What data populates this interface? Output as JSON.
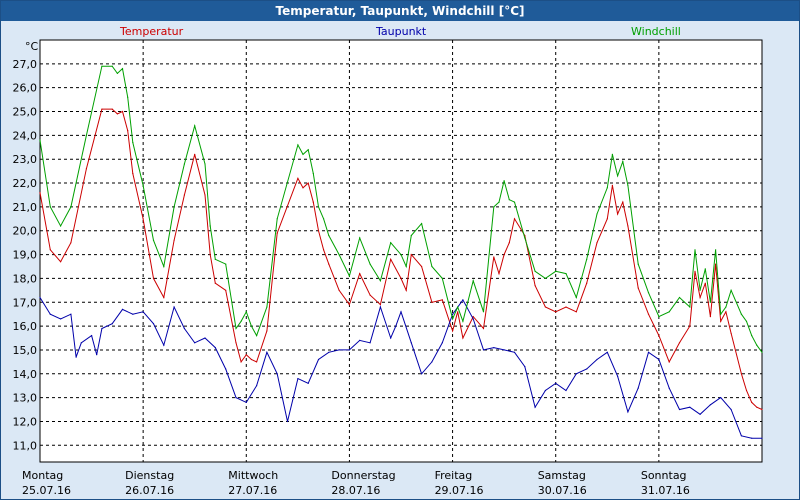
{
  "window": {
    "title": "Temperatur, Taupunkt, Windchill [°C]"
  },
  "colors": {
    "temperatur": "#cc0000",
    "taupunkt": "#0000aa",
    "windchill": "#00a000",
    "grid": "#000000",
    "plot_bg": "#ffffff"
  },
  "chart_data": {
    "type": "line",
    "title": "Temperatur, Taupunkt, Windchill [°C]",
    "unit": "°C",
    "ylabel": "°C",
    "ylim": [
      10.3,
      28.0
    ],
    "grid": true,
    "y_ticks": [
      "11,0",
      "12,0",
      "13,0",
      "14,0",
      "15,0",
      "16,0",
      "17,0",
      "18,0",
      "19,0",
      "20,0",
      "21,0",
      "22,0",
      "23,0",
      "24,0",
      "25,0",
      "26,0",
      "27,0"
    ],
    "x_ticks": [
      {
        "day": "Montag",
        "date": "25.07.16"
      },
      {
        "day": "Dienstag",
        "date": "26.07.16"
      },
      {
        "day": "Mittwoch",
        "date": "27.07.16"
      },
      {
        "day": "Donnerstag",
        "date": "28.07.16"
      },
      {
        "day": "Freitag",
        "date": "29.07.16"
      },
      {
        "day": "Samstag",
        "date": "30.07.16"
      },
      {
        "day": "Sonntag",
        "date": "31.07.16"
      }
    ],
    "x_range_days": [
      0,
      7.0
    ],
    "series": [
      {
        "name": "Temperatur",
        "color": "#cc0000",
        "x": [
          0,
          0.1,
          0.2,
          0.3,
          0.45,
          0.6,
          0.7,
          0.75,
          0.8,
          0.85,
          0.9,
          1.0,
          1.1,
          1.2,
          1.3,
          1.4,
          1.5,
          1.6,
          1.65,
          1.7,
          1.8,
          1.9,
          1.95,
          2.0,
          2.05,
          2.1,
          2.2,
          2.3,
          2.5,
          2.55,
          2.6,
          2.65,
          2.7,
          2.75,
          2.8,
          2.9,
          3.0,
          3.1,
          3.2,
          3.3,
          3.4,
          3.5,
          3.55,
          3.6,
          3.7,
          3.8,
          3.9,
          4.0,
          4.05,
          4.1,
          4.2,
          4.3,
          4.4,
          4.45,
          4.5,
          4.55,
          4.6,
          4.7,
          4.8,
          4.9,
          5.0,
          5.1,
          5.2,
          5.3,
          5.4,
          5.5,
          5.55,
          5.6,
          5.65,
          5.7,
          5.8,
          5.9,
          6.0,
          6.1,
          6.2,
          6.3,
          6.35,
          6.4,
          6.45,
          6.5,
          6.55,
          6.6,
          6.65,
          6.7,
          6.8,
          6.85,
          6.9,
          6.95,
          7.0
        ],
        "y": [
          21.6,
          19.2,
          18.7,
          19.5,
          22.6,
          25.1,
          25.1,
          24.9,
          25.0,
          24.2,
          22.4,
          20.5,
          18.0,
          17.2,
          19.6,
          21.5,
          23.2,
          21.5,
          19.0,
          17.8,
          17.5,
          15.3,
          14.5,
          14.8,
          14.6,
          14.5,
          15.8,
          19.9,
          22.2,
          21.8,
          22.0,
          21.2,
          20.0,
          19.2,
          18.6,
          17.5,
          16.9,
          18.2,
          17.3,
          16.9,
          18.8,
          18.0,
          17.5,
          19.0,
          18.5,
          17.0,
          17.1,
          15.8,
          16.6,
          15.5,
          16.4,
          15.9,
          18.9,
          18.2,
          19.0,
          19.5,
          20.5,
          19.8,
          17.7,
          16.8,
          16.6,
          16.8,
          16.6,
          17.8,
          19.5,
          20.5,
          21.9,
          20.7,
          21.2,
          20.2,
          17.6,
          16.5,
          15.6,
          14.5,
          15.3,
          16.0,
          18.3,
          17.2,
          17.8,
          16.4,
          18.6,
          16.2,
          16.6,
          15.7,
          14.0,
          13.3,
          12.8,
          12.6,
          12.5
        ]
      },
      {
        "name": "Taupunkt",
        "color": "#0000aa",
        "x": [
          0,
          0.1,
          0.2,
          0.3,
          0.35,
          0.4,
          0.5,
          0.55,
          0.6,
          0.7,
          0.8,
          0.9,
          1.0,
          1.1,
          1.2,
          1.3,
          1.4,
          1.5,
          1.6,
          1.7,
          1.8,
          1.9,
          2.0,
          2.1,
          2.2,
          2.3,
          2.4,
          2.5,
          2.6,
          2.7,
          2.8,
          2.9,
          3.0,
          3.1,
          3.2,
          3.3,
          3.4,
          3.45,
          3.5,
          3.6,
          3.7,
          3.8,
          3.9,
          4.0,
          4.1,
          4.2,
          4.3,
          4.4,
          4.5,
          4.6,
          4.7,
          4.8,
          4.9,
          5.0,
          5.1,
          5.2,
          5.3,
          5.4,
          5.5,
          5.6,
          5.7,
          5.8,
          5.9,
          6.0,
          6.1,
          6.2,
          6.3,
          6.4,
          6.5,
          6.6,
          6.7,
          6.8,
          6.9,
          7.0
        ],
        "y": [
          17.2,
          16.5,
          16.3,
          16.5,
          14.7,
          15.3,
          15.6,
          14.8,
          15.9,
          16.1,
          16.7,
          16.5,
          16.6,
          16.1,
          15.2,
          16.8,
          15.9,
          15.3,
          15.5,
          15.1,
          14.2,
          13.0,
          12.8,
          13.5,
          14.9,
          14.0,
          12.0,
          13.8,
          13.6,
          14.6,
          14.9,
          15.0,
          15.0,
          15.4,
          15.3,
          16.8,
          15.5,
          16.0,
          16.6,
          15.3,
          14.0,
          14.5,
          15.3,
          16.5,
          17.1,
          16.3,
          15.0,
          15.1,
          15.0,
          14.9,
          14.3,
          12.6,
          13.3,
          13.6,
          13.3,
          14.0,
          14.2,
          14.6,
          14.9,
          13.9,
          12.4,
          13.4,
          14.9,
          14.6,
          13.4,
          12.5,
          12.6,
          12.3,
          12.7,
          13.0,
          12.5,
          11.4,
          11.3,
          11.3
        ]
      },
      {
        "name": "Windchill",
        "color": "#00a000",
        "x": [
          0,
          0.1,
          0.2,
          0.3,
          0.45,
          0.6,
          0.7,
          0.75,
          0.8,
          0.85,
          0.9,
          1.0,
          1.1,
          1.2,
          1.3,
          1.4,
          1.5,
          1.6,
          1.65,
          1.7,
          1.8,
          1.9,
          1.95,
          2.0,
          2.05,
          2.1,
          2.2,
          2.3,
          2.5,
          2.55,
          2.6,
          2.65,
          2.7,
          2.75,
          2.8,
          2.9,
          3.0,
          3.1,
          3.2,
          3.3,
          3.4,
          3.5,
          3.55,
          3.6,
          3.7,
          3.8,
          3.9,
          4.0,
          4.05,
          4.1,
          4.2,
          4.3,
          4.4,
          4.45,
          4.5,
          4.55,
          4.6,
          4.7,
          4.8,
          4.9,
          5.0,
          5.1,
          5.2,
          5.3,
          5.4,
          5.5,
          5.55,
          5.6,
          5.65,
          5.7,
          5.8,
          5.9,
          6.0,
          6.1,
          6.2,
          6.3,
          6.35,
          6.4,
          6.45,
          6.5,
          6.55,
          6.6,
          6.65,
          6.7,
          6.8,
          6.85,
          6.9,
          6.95,
          7.0
        ],
        "y": [
          23.8,
          21.0,
          20.2,
          21.0,
          24.0,
          26.9,
          26.9,
          26.6,
          26.8,
          25.6,
          23.7,
          21.9,
          19.6,
          18.5,
          21.0,
          22.8,
          24.4,
          22.8,
          20.2,
          18.8,
          18.6,
          15.9,
          16.2,
          16.6,
          16.0,
          15.6,
          16.8,
          20.5,
          23.6,
          23.2,
          23.4,
          22.4,
          21.0,
          20.5,
          19.8,
          19.0,
          18.1,
          19.7,
          18.6,
          17.9,
          19.5,
          19.0,
          18.5,
          19.8,
          20.3,
          18.5,
          18.0,
          16.3,
          16.8,
          16.2,
          17.9,
          16.6,
          21.0,
          21.2,
          22.1,
          21.3,
          21.2,
          19.7,
          18.3,
          18.0,
          18.3,
          18.2,
          17.2,
          18.8,
          20.7,
          21.8,
          23.2,
          22.3,
          22.9,
          21.9,
          18.6,
          17.4,
          16.4,
          16.6,
          17.2,
          16.8,
          19.2,
          17.5,
          18.4,
          17.0,
          19.2,
          16.5,
          16.8,
          17.5,
          16.5,
          16.2,
          15.6,
          15.2,
          14.9
        ]
      }
    ]
  }
}
